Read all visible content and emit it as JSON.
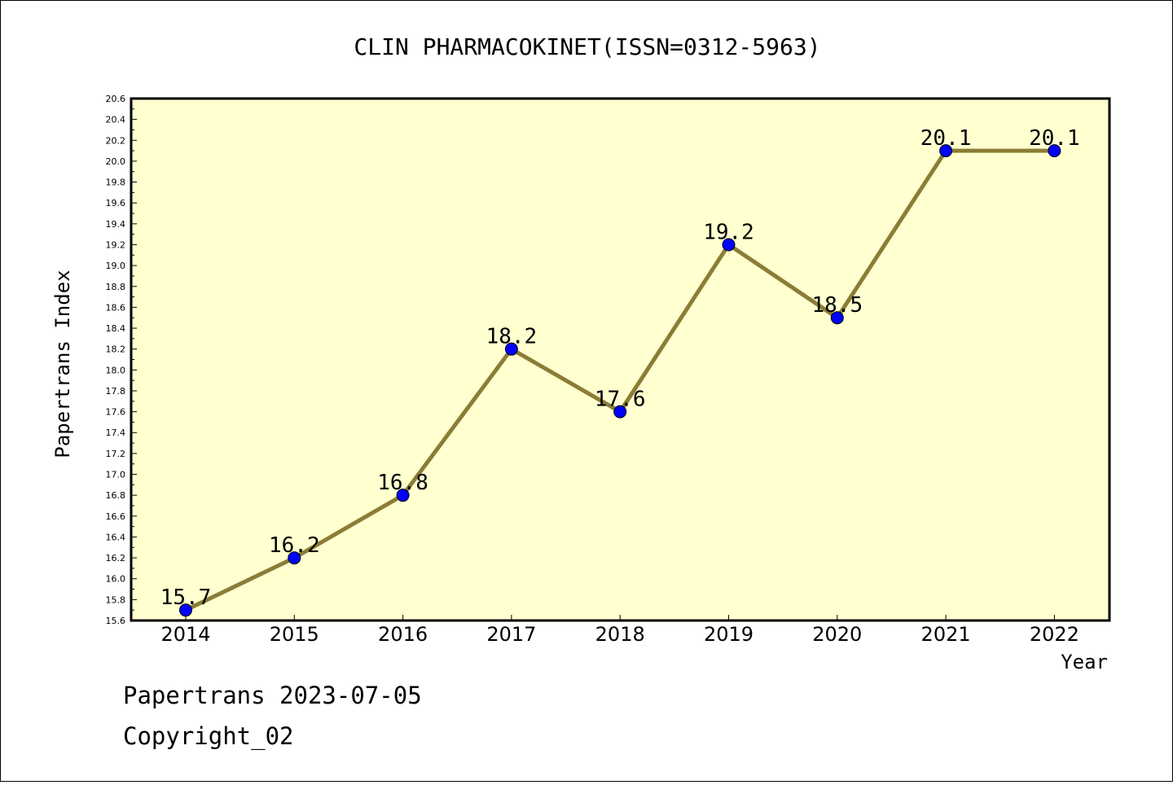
{
  "chart_data": {
    "type": "line",
    "title": "CLIN PHARMACOKINET(ISSN=0312-5963)",
    "xlabel": "Year",
    "ylabel": "Papertrans Index",
    "x": [
      "2014",
      "2015",
      "2016",
      "2017",
      "2018",
      "2019",
      "2020",
      "2021",
      "2022"
    ],
    "series": [
      {
        "values": [
          15.7,
          16.2,
          16.8,
          18.2,
          17.6,
          19.2,
          18.5,
          20.1,
          20.1
        ]
      }
    ],
    "data_labels": [
      "15.7",
      "16.2",
      "16.8",
      "18.2",
      "17.6",
      "19.2",
      "18.5",
      "20.1",
      "20.1"
    ],
    "ylim": [
      15.6,
      20.6
    ],
    "y_ticks": [
      "15.6",
      "15.8",
      "16.0",
      "16.2",
      "16.4",
      "16.6",
      "16.8",
      "17.0",
      "17.2",
      "17.4",
      "17.6",
      "17.8",
      "18.0",
      "18.2",
      "18.4",
      "18.6",
      "18.8",
      "19.0",
      "19.2",
      "19.4",
      "19.6",
      "19.8",
      "20.0",
      "20.2",
      "20.4",
      "20.6"
    ],
    "grid": false,
    "colors": {
      "plot_background": "#ffffd0",
      "line": "#8b7d36",
      "marker": "#0000ff"
    }
  },
  "footer": {
    "line1": "Papertrans 2023-07-05",
    "line2": "Copyright_02"
  }
}
